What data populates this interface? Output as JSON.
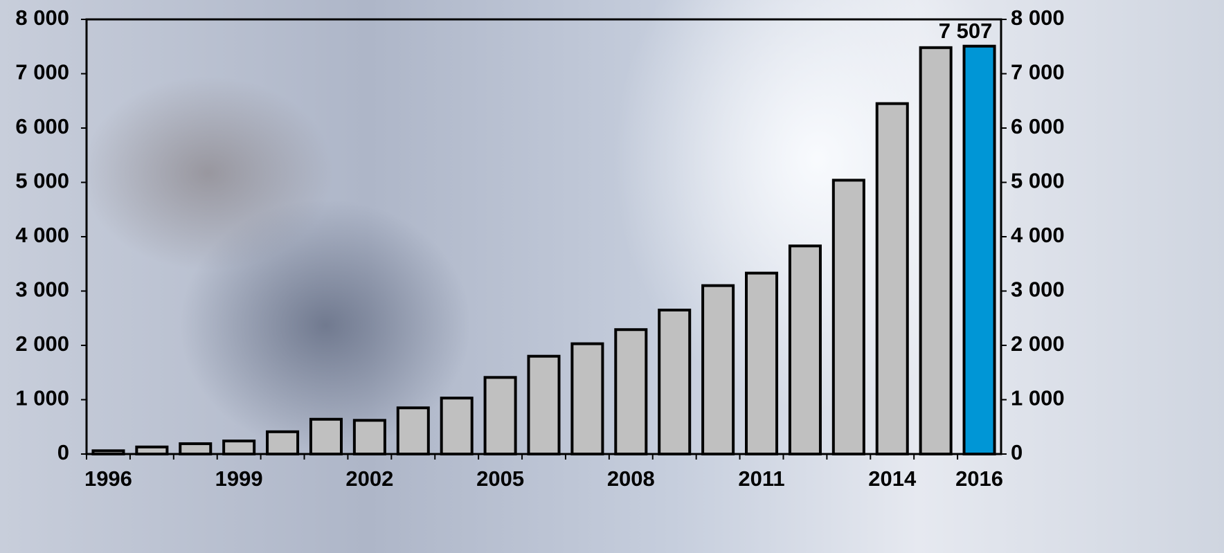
{
  "chart_data": {
    "type": "bar",
    "categories": [
      "1996",
      null,
      null,
      "1999",
      null,
      null,
      "2002",
      null,
      null,
      "2005",
      null,
      null,
      "2008",
      null,
      null,
      "2011",
      null,
      null,
      "2014",
      null,
      "2016"
    ],
    "values": [
      60,
      130,
      190,
      240,
      410,
      640,
      620,
      850,
      1030,
      1410,
      1800,
      2030,
      2290,
      2650,
      3100,
      3330,
      3830,
      5040,
      6450,
      7480,
      7507
    ],
    "value_labels": [
      null,
      null,
      null,
      null,
      null,
      null,
      null,
      null,
      null,
      null,
      null,
      null,
      null,
      null,
      null,
      null,
      null,
      null,
      null,
      null,
      "7 507"
    ],
    "colors": [
      "#c0c0c0",
      "#c0c0c0",
      "#c0c0c0",
      "#c0c0c0",
      "#c0c0c0",
      "#c0c0c0",
      "#c0c0c0",
      "#c0c0c0",
      "#c0c0c0",
      "#c0c0c0",
      "#c0c0c0",
      "#c0c0c0",
      "#c0c0c0",
      "#c0c0c0",
      "#c0c0c0",
      "#c0c0c0",
      "#c0c0c0",
      "#c0c0c0",
      "#c0c0c0",
      "#c0c0c0",
      "#0096d6"
    ],
    "ylim": [
      0,
      8000
    ],
    "yticks": [
      {
        "value": 0,
        "label": "0"
      },
      {
        "value": 1000,
        "label": "1 000"
      },
      {
        "value": 2000,
        "label": "2 000"
      },
      {
        "value": 3000,
        "label": "3 000"
      },
      {
        "value": 4000,
        "label": "4 000"
      },
      {
        "value": 5000,
        "label": "5 000"
      },
      {
        "value": 6000,
        "label": "6 000"
      },
      {
        "value": 7000,
        "label": "7 000"
      },
      {
        "value": 8000,
        "label": "8 000"
      }
    ],
    "y2lim": [
      0,
      8000
    ],
    "y2ticks": [
      {
        "value": 0,
        "label": "0"
      },
      {
        "value": 1000,
        "label": "1 000"
      },
      {
        "value": 2000,
        "label": "2 000"
      },
      {
        "value": 3000,
        "label": "3 000"
      },
      {
        "value": 4000,
        "label": "4 000"
      },
      {
        "value": 5000,
        "label": "5 000"
      },
      {
        "value": 6000,
        "label": "6 000"
      },
      {
        "value": 7000,
        "label": "7 000"
      },
      {
        "value": 8000,
        "label": "8 000"
      }
    ],
    "grid": false
  }
}
